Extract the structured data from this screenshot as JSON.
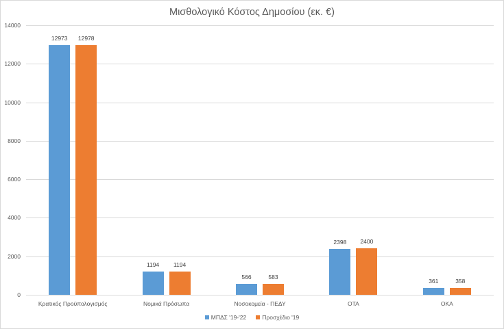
{
  "chart_data": {
    "type": "bar",
    "title": "Μισθολογικό Κόστος Δημοσίου (εκ. €)",
    "xlabel": "",
    "ylabel": "",
    "ylim": [
      0,
      14000
    ],
    "yticks": [
      0,
      2000,
      4000,
      6000,
      8000,
      10000,
      12000,
      14000
    ],
    "grid": true,
    "legend_position": "bottom",
    "categories": [
      "Κρατικός Προϋπολογισμός",
      "Νομικά Πρόσωπα",
      "Νοσοκομεία - ΠΕΔΥ",
      "ΟΤΑ",
      "ΟΚΑ"
    ],
    "series": [
      {
        "name": "ΜΠΔΣ '19-'22",
        "color": "#5b9bd5",
        "values": [
          12973,
          1194,
          566,
          2398,
          361
        ]
      },
      {
        "name": "Προσχέδιο '19",
        "color": "#ed7d31",
        "values": [
          12978,
          1194,
          583,
          2400,
          358
        ]
      }
    ],
    "data_labels": true
  }
}
